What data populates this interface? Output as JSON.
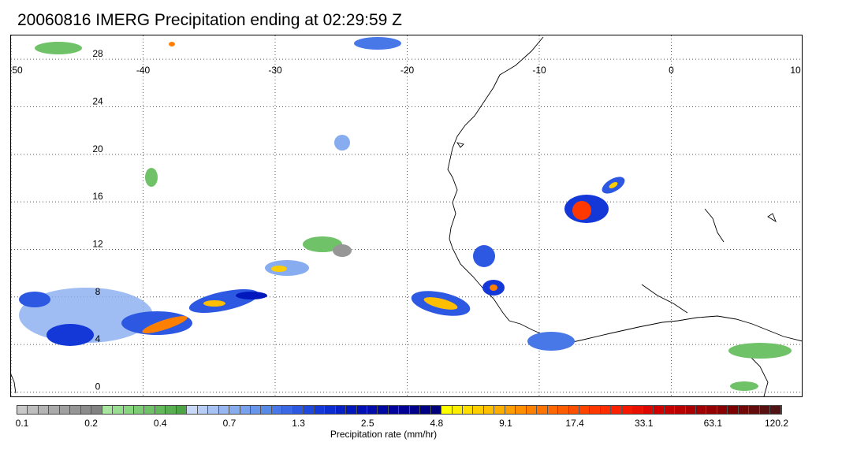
{
  "title": "20060816 IMERG Precipitation ending at 02:29:59 Z",
  "map": {
    "lon_ticks": [
      "-50",
      "-40",
      "-30",
      "-20",
      "-10",
      "0",
      "10"
    ],
    "lat_ticks": [
      "28",
      "24",
      "20",
      "16",
      "12",
      "8",
      "4",
      "0"
    ],
    "lon_range": [
      -50,
      10
    ],
    "lat_range": [
      -0.5,
      30
    ],
    "grid": "dotted"
  },
  "colorbar": {
    "label": "Precipitation rate (mm/hr)",
    "ticks": [
      "0.1",
      "0.2",
      "0.4",
      "0.7",
      "1.3",
      "2.5",
      "4.8",
      "9.1",
      "17.4",
      "33.1",
      "63.1",
      "120.2"
    ],
    "colors": [
      "#c8c8c8",
      "#bebebe",
      "#b4b4b4",
      "#aaaaaa",
      "#a0a0a0",
      "#969696",
      "#8c8c8c",
      "#828282",
      "#a8e6a0",
      "#98de90",
      "#88d680",
      "#7ccc74",
      "#70c268",
      "#64b85c",
      "#58ae50",
      "#4ca444",
      "#c8d8f8",
      "#b8cdf6",
      "#a8c2f4",
      "#98b7f2",
      "#88acf0",
      "#78a1ee",
      "#6896ec",
      "#588be8",
      "#4878e8",
      "#3a68e6",
      "#2c58e2",
      "#1e48de",
      "#1438d8",
      "#0c2cd0",
      "#0620c6",
      "#0018bc",
      "#0010b4",
      "#000cac",
      "#0008a4",
      "#00049c",
      "#000094",
      "#00008c",
      "#000084",
      "#00007c",
      "#ffff00",
      "#ffee00",
      "#ffde00",
      "#ffce00",
      "#ffbe00",
      "#ffae00",
      "#ff9e00",
      "#ff8e00",
      "#ff8000",
      "#ff7400",
      "#ff6800",
      "#ff5c00",
      "#ff5000",
      "#ff4400",
      "#ff3800",
      "#ff2c00",
      "#ff2000",
      "#f41800",
      "#e81000",
      "#dc0800",
      "#d00000",
      "#c40000",
      "#b80000",
      "#ac0000",
      "#a00000",
      "#940000",
      "#880000",
      "#7c0000",
      "#700808",
      "#640c0c",
      "#581010",
      "#501414"
    ]
  }
}
